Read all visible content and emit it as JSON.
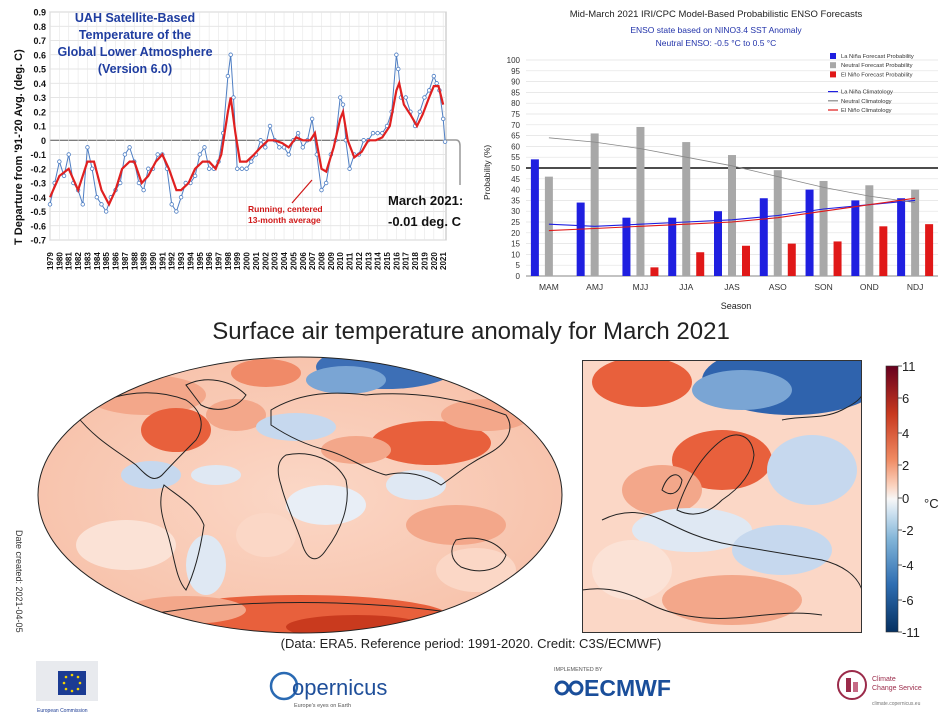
{
  "uah": {
    "title_lines": [
      "UAH Satellite-Based",
      "Temperature of the",
      "Global Lower Atmosphere",
      "(Version 6.0)"
    ],
    "ylabel": "T Departure from '91-'20 Avg. (deg. C)",
    "annotation_running": [
      "Running, centered",
      "13-month average"
    ],
    "annotation_latest": [
      "March 2021:",
      "-0.01 deg. C"
    ]
  },
  "enso": {
    "title": "Mid-March 2021 IRI/CPC Model-Based Probabilistic ENSO Forecasts",
    "subtitle1": "ENSO state based on NINO3.4 SST Anomaly",
    "subtitle2": "Neutral ENSO: -0.5 °C to 0.5 °C",
    "legend": [
      "La Niña Forecast Probability",
      "Neutral Forecast Probability",
      "El Niño Forecast Probability",
      "La Niña Climatology",
      "Neutral Climatology",
      "El Niño Climatology"
    ]
  },
  "map": {
    "title": "Surface air temperature anomaly for March 2021",
    "credit": "(Data: ERA5.  Reference period: 1991-2020.  Credit: C3S/ECMWF)",
    "date_created": "Date created: 2021-04-05",
    "colorbar_ticks": [
      "11",
      "6",
      "4",
      "2",
      "0",
      "-2",
      "-4",
      "-6",
      "-11"
    ],
    "colorbar_unit": "°C"
  },
  "logos": {
    "ec": "European Commission",
    "copernicus": "opernicus",
    "copernicus_sub": "Europe's eyes on Earth",
    "ecmwf_implemented": "IMPLEMENTED BY",
    "ecmwf": "ECMWF",
    "c3s": [
      "Climate",
      "Change Service"
    ],
    "c3s_url": "climate.copernicus.eu"
  },
  "colors": {
    "uah_line": "#4f7fc4",
    "uah_avg": "#e02020",
    "lanina": "#1f1fe0",
    "neutral": "#a8a8a8",
    "elnino": "#e01818",
    "ecmwf": "#1a4e9a"
  },
  "chart_data": [
    {
      "type": "line",
      "title": "UAH Satellite-Based Temperature of the Global Lower Atmosphere (Version 6.0)",
      "ylabel": "T Departure from '91-'20 Avg. (deg. C)",
      "ylim": [
        -0.7,
        0.9
      ],
      "yticks": [
        0.9,
        0.8,
        0.7,
        0.6,
        0.5,
        0.4,
        0.3,
        0.2,
        0.1,
        0,
        -0.1,
        -0.2,
        -0.3,
        -0.4,
        -0.5,
        -0.6,
        -0.7
      ],
      "xlim": [
        1979,
        2021.3
      ],
      "xticks": [
        "1979",
        "1980",
        "1981",
        "1982",
        "1983",
        "1984",
        "1985",
        "1986",
        "1987",
        "1988",
        "1989",
        "1990",
        "1991",
        "1992",
        "1993",
        "1994",
        "1995",
        "1996",
        "1997",
        "1998",
        "1999",
        "2000",
        "2001",
        "2002",
        "2003",
        "2004",
        "2005",
        "2006",
        "2007",
        "2008",
        "2009",
        "2010",
        "2011",
        "2012",
        "2013",
        "2014",
        "2015",
        "2016",
        "2017",
        "2018",
        "2019",
        "2020",
        "2021"
      ],
      "grid": true,
      "series": [
        {
          "x": [
            1979.0,
            1979.5,
            1980.0,
            1980.5,
            1981.0,
            1981.5,
            1982.0,
            1982.5,
            1983.0,
            1983.5,
            1984.0,
            1984.5,
            1985.0,
            1985.5,
            1986.0,
            1986.5,
            1987.0,
            1987.5,
            1988.0,
            1988.5,
            1989.0,
            1989.5,
            1990.0,
            1990.5,
            1991.0,
            1991.5,
            1992.0,
            1992.5,
            1993.0,
            1993.5,
            1994.0,
            1994.5,
            1995.0,
            1995.5,
            1996.0,
            1996.5,
            1997.0,
            1997.5,
            1998.0,
            1998.3,
            1998.6,
            1999.0,
            1999.5,
            2000.0,
            2000.5,
            2001.0,
            2001.5,
            2002.0,
            2002.5,
            2003.0,
            2003.5,
            2004.0,
            2004.5,
            2005.0,
            2005.5,
            2006.0,
            2006.5,
            2007.0,
            2007.5,
            2008.0,
            2008.5,
            2009.0,
            2009.5,
            2010.0,
            2010.3,
            2010.6,
            2011.0,
            2011.5,
            2012.0,
            2012.5,
            2013.0,
            2013.5,
            2014.0,
            2014.5,
            2015.0,
            2015.5,
            2016.0,
            2016.2,
            2016.5,
            2017.0,
            2017.5,
            2018.0,
            2018.5,
            2019.0,
            2019.5,
            2020.0,
            2020.3,
            2020.6,
            2021.0,
            2021.2
          ],
          "y": [
            -0.45,
            -0.3,
            -0.15,
            -0.25,
            -0.1,
            -0.3,
            -0.35,
            -0.45,
            -0.05,
            -0.2,
            -0.4,
            -0.45,
            -0.5,
            -0.4,
            -0.35,
            -0.3,
            -0.1,
            -0.05,
            -0.15,
            -0.3,
            -0.35,
            -0.2,
            -0.2,
            -0.1,
            -0.1,
            -0.2,
            -0.45,
            -0.5,
            -0.4,
            -0.3,
            -0.3,
            -0.25,
            -0.1,
            -0.05,
            -0.2,
            -0.2,
            -0.15,
            0.05,
            0.45,
            0.6,
            0.3,
            -0.2,
            -0.2,
            -0.2,
            -0.15,
            -0.1,
            0.0,
            -0.05,
            0.1,
            0.0,
            -0.05,
            -0.05,
            -0.1,
            0.0,
            0.05,
            -0.05,
            0.0,
            0.15,
            -0.1,
            -0.35,
            -0.3,
            -0.1,
            0.0,
            0.3,
            0.25,
            0.0,
            -0.2,
            -0.1,
            -0.1,
            0.0,
            0.0,
            0.05,
            0.05,
            0.05,
            0.1,
            0.2,
            0.6,
            0.5,
            0.3,
            0.3,
            0.2,
            0.1,
            0.2,
            0.3,
            0.35,
            0.45,
            0.4,
            0.35,
            0.15,
            -0.01
          ]
        },
        {
          "x": [
            1979.0,
            1980.0,
            1981.0,
            1982.0,
            1983.0,
            1983.7,
            1984.5,
            1985.3,
            1986.0,
            1986.7,
            1987.5,
            1988.0,
            1988.8,
            1989.5,
            1990.3,
            1991.0,
            1991.7,
            1992.5,
            1993.0,
            1993.8,
            1994.5,
            1995.3,
            1996.0,
            1996.7,
            1997.3,
            1998.0,
            1998.3,
            1998.8,
            1999.3,
            2000.0,
            2000.8,
            2001.5,
            2002.3,
            2003.0,
            2003.8,
            2004.5,
            2005.3,
            2006.0,
            2006.8,
            2007.3,
            2008.0,
            2008.5,
            2009.3,
            2010.0,
            2010.3,
            2010.8,
            2011.5,
            2012.3,
            2013.0,
            2013.8,
            2014.5,
            2015.3,
            2016.0,
            2016.3,
            2016.8,
            2017.5,
            2018.2,
            2018.8,
            2019.5,
            2020.0,
            2020.5,
            2021.0
          ],
          "y": [
            -0.4,
            -0.25,
            -0.2,
            -0.35,
            -0.15,
            -0.15,
            -0.35,
            -0.45,
            -0.35,
            -0.2,
            -0.15,
            -0.15,
            -0.3,
            -0.25,
            -0.15,
            -0.1,
            -0.2,
            -0.35,
            -0.35,
            -0.3,
            -0.2,
            -0.15,
            -0.15,
            -0.2,
            -0.1,
            0.2,
            0.3,
            0.05,
            -0.15,
            -0.15,
            -0.1,
            -0.05,
            0.0,
            0.0,
            -0.02,
            -0.05,
            0.02,
            0.0,
            0.0,
            0.05,
            -0.2,
            -0.22,
            -0.05,
            0.15,
            0.2,
            0.0,
            -0.12,
            -0.08,
            0.0,
            0.0,
            0.02,
            0.1,
            0.35,
            0.4,
            0.25,
            0.18,
            0.1,
            0.18,
            0.3,
            0.38,
            0.38,
            0.25
          ]
        }
      ]
    },
    {
      "type": "bar",
      "title": "Mid-March 2021 IRI/CPC Model-Based Probabilistic ENSO Forecasts",
      "xlabel": "Season",
      "ylabel": "Probability (%)",
      "ylim": [
        0,
        100
      ],
      "yticks": [
        0,
        5,
        10,
        15,
        20,
        25,
        30,
        35,
        40,
        45,
        50,
        55,
        60,
        65,
        70,
        75,
        80,
        85,
        90,
        95,
        100
      ],
      "categories": [
        "MAM",
        "AMJ",
        "MJJ",
        "JJA",
        "JAS",
        "ASO",
        "SON",
        "OND",
        "NDJ"
      ],
      "series": [
        {
          "name": "La Niña Forecast Probability",
          "values": [
            54,
            34,
            27,
            27,
            30,
            36,
            40,
            35,
            36
          ]
        },
        {
          "name": "Neutral Forecast Probability",
          "values": [
            46,
            66,
            69,
            62,
            56,
            49,
            44,
            42,
            40
          ]
        },
        {
          "name": "El Niño Forecast Probability",
          "values": [
            0,
            0,
            4,
            11,
            14,
            15,
            16,
            23,
            24
          ]
        },
        {
          "name": "La Niña Climatology",
          "values": [
            24,
            23,
            24,
            25,
            26,
            28,
            31,
            33,
            35
          ]
        },
        {
          "name": "Neutral Climatology",
          "values": [
            64,
            62,
            59,
            55,
            51,
            46,
            41,
            37,
            34
          ]
        },
        {
          "name": "El Niño Climatology",
          "values": [
            21,
            22,
            23,
            24,
            25,
            27,
            30,
            33,
            36
          ]
        }
      ],
      "reference_line": 50,
      "legend": "top-right"
    },
    {
      "type": "heatmap",
      "title": "Surface air temperature anomaly for March 2021",
      "colorbar_range": [
        -11,
        11
      ],
      "colorbar_ticks": [
        11,
        6,
        4,
        2,
        0,
        -2,
        -4,
        -6,
        -11
      ],
      "colorbar_unit": "°C"
    }
  ]
}
